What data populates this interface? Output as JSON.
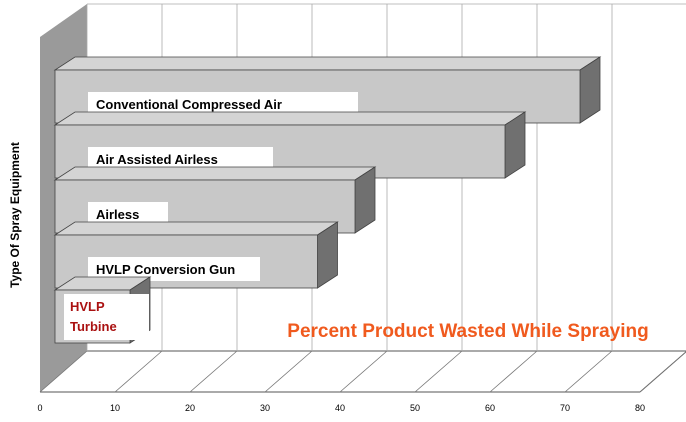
{
  "chart_data": {
    "type": "bar",
    "orientation": "horizontal",
    "style": "3d",
    "categories": [
      "Conventional Compressed Air",
      "Air Assisted Airless",
      "Airless",
      "HVLP Conversion Gun",
      "HVLP Turbine"
    ],
    "values": [
      72,
      62,
      42,
      37,
      12
    ],
    "ylabel": "Type Of Spray Equipment",
    "xlabel": "",
    "xlim": [
      0,
      80
    ],
    "xticks": [
      "0",
      "10",
      "20",
      "30",
      "40",
      "50",
      "60",
      "70",
      "80"
    ],
    "annotation": "Percent Product Wasted While Spraying",
    "grid": true,
    "colors": {
      "bar_front": "#c8c8c8",
      "bar_top": "#d4d4d4",
      "bar_side": "#707070",
      "wall": "#9a9a9a",
      "label_box": "#ffffff",
      "highlight_label": "#aa1111",
      "annotation": "#f05a1e",
      "grid": "#aaaaaa"
    },
    "highlight_category": "HVLP Turbine"
  }
}
